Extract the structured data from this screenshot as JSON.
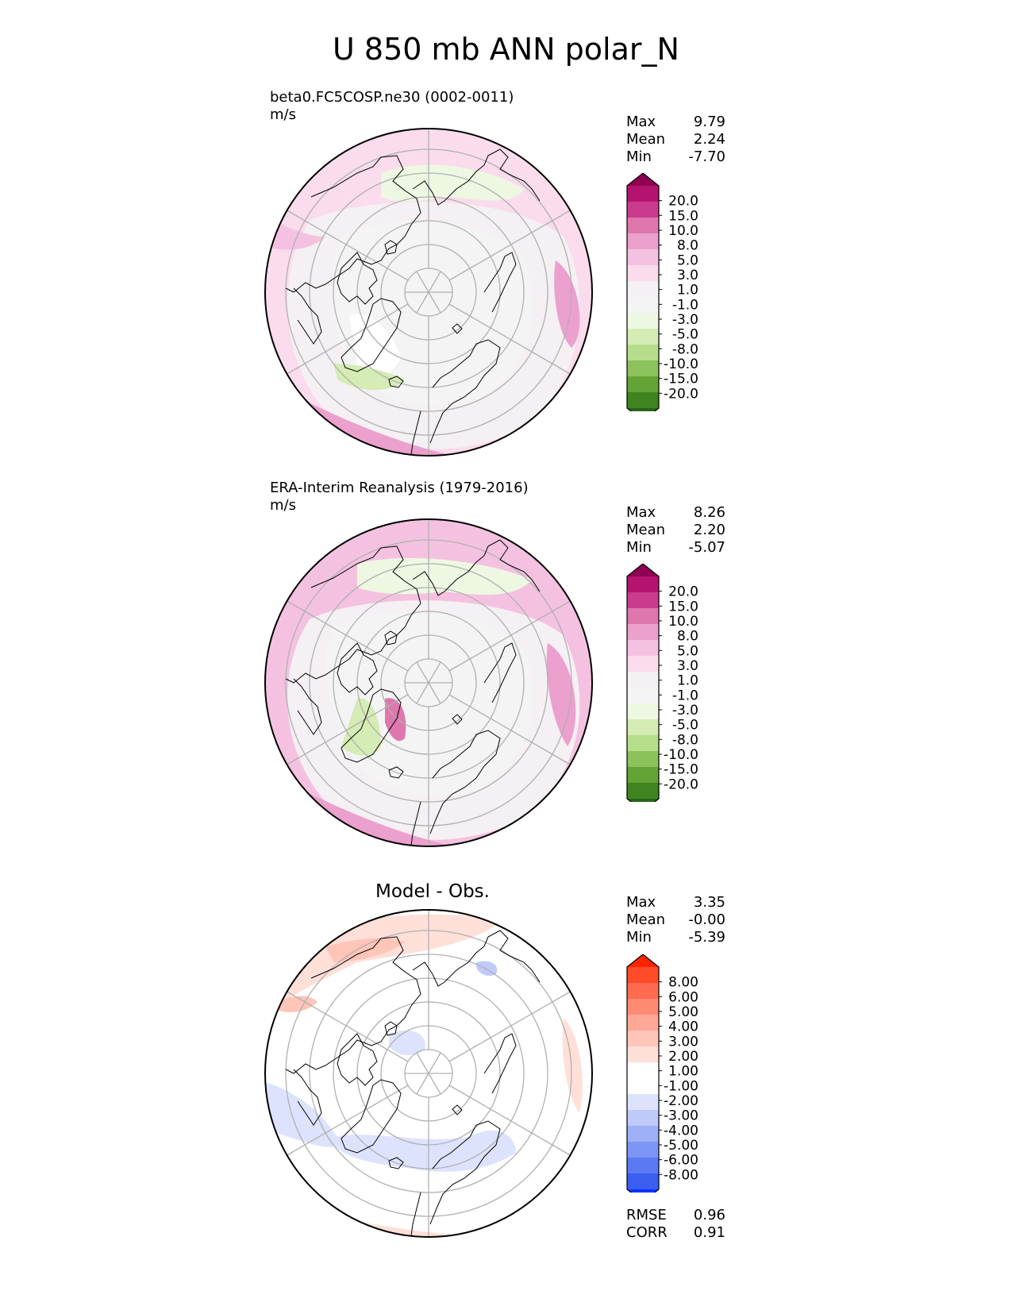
{
  "figure_title": "U 850 mb ANN polar_N",
  "panels": [
    {
      "title": "beta0.FC5COSP.ne30 (0002-0011)",
      "units": "m/s",
      "stats": [
        {
          "label": "Max",
          "value": "9.79"
        },
        {
          "label": "Mean",
          "value": "2.24"
        },
        {
          "label": "Min",
          "value": "-7.70"
        }
      ],
      "colorbar_ticks": [
        "20.0",
        "15.0",
        "10.0",
        "8.0",
        "5.0",
        "3.0",
        "1.0",
        "-1.0",
        "-3.0",
        "-5.0",
        "-8.0",
        "-10.0",
        "-15.0",
        "-20.0"
      ]
    },
    {
      "title": "ERA-Interim Reanalysis (1979-2016)",
      "units": "m/s",
      "stats": [
        {
          "label": "Max",
          "value": "8.26"
        },
        {
          "label": "Mean",
          "value": "2.20"
        },
        {
          "label": "Min",
          "value": "-5.07"
        }
      ],
      "colorbar_ticks": [
        "20.0",
        "15.0",
        "10.0",
        "8.0",
        "5.0",
        "3.0",
        "1.0",
        "-1.0",
        "-3.0",
        "-5.0",
        "-8.0",
        "-10.0",
        "-15.0",
        "-20.0"
      ]
    },
    {
      "title": "Model - Obs.",
      "stats": [
        {
          "label": "Max",
          "value": "3.35"
        },
        {
          "label": "Mean",
          "value": "-0.00"
        },
        {
          "label": "Min",
          "value": "-5.39"
        }
      ],
      "colorbar_ticks": [
        "8.00",
        "6.00",
        "5.00",
        "4.00",
        "3.00",
        "2.00",
        "1.00",
        "-1.00",
        "-2.00",
        "-3.00",
        "-4.00",
        "-5.00",
        "-6.00",
        "-8.00"
      ],
      "metrics": [
        {
          "label": "RMSE",
          "value": "0.96"
        },
        {
          "label": "CORR",
          "value": "0.91"
        }
      ]
    }
  ],
  "colormaps": {
    "diverging_pink_green": [
      "#8e0152",
      "#b4146f",
      "#c93b8c",
      "#de77ae",
      "#eba0cd",
      "#f4c2e0",
      "#fadcec",
      "#f5f0f3",
      "#f4f4f4",
      "#eef7e2",
      "#d5ecb4",
      "#b6de8a",
      "#8cc25c",
      "#64a336",
      "#3f841f",
      "#276419"
    ],
    "diverging_red_blue": [
      "#ff2300",
      "#ff4b28",
      "#ff6b4f",
      "#ff8a73",
      "#ffa896",
      "#ffc5b8",
      "#ffe0d8",
      "#ffffff",
      "#ffffff",
      "#dde3fd",
      "#bfcafb",
      "#9eb0f8",
      "#7d95f6",
      "#5b79f3",
      "#3a5ef0",
      "#0a33ff"
    ]
  }
}
